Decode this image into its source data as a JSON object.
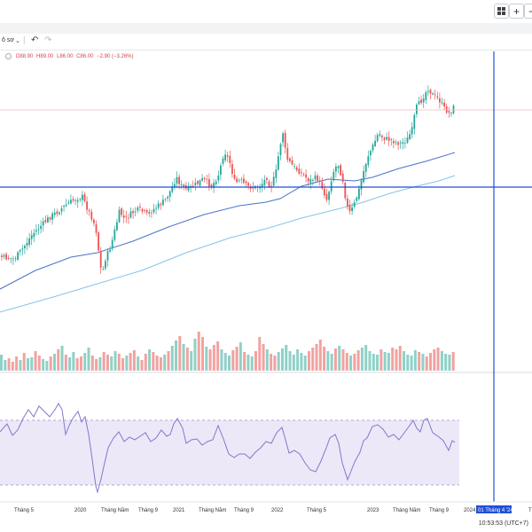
{
  "toolbar": {
    "grid_icon": "grid-icon",
    "plus_label": "+",
    "dash_label": "−",
    "left_label": "ô sơ",
    "undo_icon": "undo-icon",
    "redo_icon": "redo-icon"
  },
  "legend": {
    "open": "O88.90",
    "high": "H89.00",
    "low": "L86.00",
    "close": "C86.00",
    "change": "−2.90 (−3.26%)"
  },
  "crosshair_label": "01 Tháng 4 '24",
  "timezone": "10:53:53 (UTC+7)",
  "colors": {
    "up": "#26a69a",
    "down": "#ef5350",
    "ma1": "#4a73c9",
    "ma2": "#87c3ea",
    "crosshair": "#1f4fd8",
    "rsi": "#8478c8",
    "rsi_band": "#ece8f8"
  },
  "chart_data": [
    {
      "type": "candlestick",
      "x_ticks": [
        "Tháng 5",
        "2020",
        "Tháng Năm",
        "Tháng 9",
        "2021",
        "Tháng Năm",
        "Tháng 9",
        "2022",
        "Tháng 5",
        "2023",
        "Tháng Năm",
        "Tháng 9",
        "2024",
        "Th"
      ],
      "series": [
        {
          "kind": "candles",
          "color_up": "#26a69a",
          "color_down": "#ef5350"
        },
        {
          "kind": "moving-average",
          "color": "#4a73c9"
        },
        {
          "kind": "moving-average",
          "color": "#87c3ea"
        }
      ],
      "price_path": [
        [
          0,
          290
        ],
        [
          15,
          292
        ],
        [
          25,
          280
        ],
        [
          35,
          265
        ],
        [
          45,
          255
        ],
        [
          55,
          245
        ],
        [
          65,
          238
        ],
        [
          75,
          230
        ],
        [
          85,
          224
        ],
        [
          92,
          222
        ],
        [
          98,
          236
        ],
        [
          104,
          248
        ],
        [
          108,
          262
        ],
        [
          112,
          298
        ],
        [
          114,
          310
        ],
        [
          118,
          292
        ],
        [
          124,
          278
        ],
        [
          128,
          262
        ],
        [
          134,
          238
        ],
        [
          140,
          248
        ],
        [
          148,
          240
        ],
        [
          156,
          236
        ],
        [
          165,
          242
        ],
        [
          175,
          234
        ],
        [
          185,
          226
        ],
        [
          192,
          214
        ],
        [
          198,
          200
        ],
        [
          204,
          210
        ],
        [
          210,
          214
        ],
        [
          220,
          208
        ],
        [
          228,
          202
        ],
        [
          238,
          210
        ],
        [
          246,
          196
        ],
        [
          252,
          170
        ],
        [
          258,
          182
        ],
        [
          264,
          206
        ],
        [
          270,
          204
        ],
        [
          278,
          210
        ],
        [
          286,
          212
        ],
        [
          294,
          208
        ],
        [
          300,
          200
        ],
        [
          304,
          212
        ],
        [
          310,
          196
        ],
        [
          314,
          170
        ],
        [
          318,
          148
        ],
        [
          322,
          178
        ],
        [
          330,
          188
        ],
        [
          340,
          196
        ],
        [
          348,
          204
        ],
        [
          356,
          200
        ],
        [
          362,
          210
        ],
        [
          368,
          226
        ],
        [
          374,
          196
        ],
        [
          380,
          184
        ],
        [
          386,
          204
        ],
        [
          390,
          232
        ],
        [
          394,
          240
        ],
        [
          398,
          232
        ],
        [
          404,
          214
        ],
        [
          410,
          190
        ],
        [
          414,
          176
        ],
        [
          420,
          164
        ],
        [
          426,
          150
        ],
        [
          432,
          156
        ],
        [
          440,
          158
        ],
        [
          450,
          162
        ],
        [
          458,
          158
        ],
        [
          464,
          146
        ],
        [
          468,
          122
        ],
        [
          474,
          114
        ],
        [
          478,
          106
        ],
        [
          482,
          100
        ],
        [
          488,
          108
        ],
        [
          494,
          112
        ],
        [
          500,
          122
        ],
        [
          506,
          128
        ],
        [
          510,
          122
        ],
        [
          513,
          118
        ]
      ],
      "volume": [
        18,
        12,
        14,
        10,
        16,
        12,
        20,
        14,
        15,
        22,
        17,
        13,
        11,
        16,
        19,
        24,
        28,
        18,
        15,
        21,
        14,
        16,
        20,
        26,
        17,
        13,
        15,
        21,
        18,
        16,
        22,
        19,
        14,
        17,
        20,
        23,
        16,
        12,
        19,
        24,
        21,
        17,
        15,
        18,
        22,
        28,
        34,
        39,
        30,
        26,
        22,
        36,
        44,
        38,
        27,
        24,
        29,
        33,
        24,
        20,
        17,
        23,
        27,
        32,
        21,
        18,
        16,
        22,
        38,
        30,
        24,
        19,
        17,
        21,
        25,
        29,
        22,
        18,
        24,
        20,
        17,
        22,
        26,
        30,
        35,
        27,
        22,
        19,
        25,
        28,
        24,
        20,
        17,
        19,
        23,
        26,
        29,
        22,
        19,
        18,
        24,
        21,
        20,
        26,
        24,
        28,
        22,
        18,
        17,
        23,
        21,
        19,
        16,
        20,
        24,
        26,
        22,
        19,
        18,
        21
      ],
      "rsi_path": [
        [
          0,
          487
        ],
        [
          8,
          478
        ],
        [
          14,
          491
        ],
        [
          20,
          485
        ],
        [
          26,
          472
        ],
        [
          32,
          462
        ],
        [
          38,
          470
        ],
        [
          44,
          458
        ],
        [
          50,
          464
        ],
        [
          56,
          470
        ],
        [
          62,
          462
        ],
        [
          66,
          455
        ],
        [
          70,
          462
        ],
        [
          74,
          490
        ],
        [
          78,
          480
        ],
        [
          82,
          472
        ],
        [
          88,
          464
        ],
        [
          92,
          476
        ],
        [
          96,
          470
        ],
        [
          100,
          490
        ],
        [
          104,
          518
        ],
        [
          108,
          548
        ],
        [
          110,
          555
        ],
        [
          114,
          540
        ],
        [
          118,
          522
        ],
        [
          122,
          505
        ],
        [
          128,
          494
        ],
        [
          134,
          487
        ],
        [
          140,
          498
        ],
        [
          146,
          493
        ],
        [
          152,
          496
        ],
        [
          158,
          492
        ],
        [
          164,
          488
        ],
        [
          170,
          498
        ],
        [
          176,
          494
        ],
        [
          182,
          485
        ],
        [
          188,
          492
        ],
        [
          192,
          490
        ],
        [
          196,
          478
        ],
        [
          200,
          472
        ],
        [
          206,
          483
        ],
        [
          210,
          500
        ],
        [
          216,
          496
        ],
        [
          222,
          495
        ],
        [
          228,
          502
        ],
        [
          234,
          498
        ],
        [
          240,
          496
        ],
        [
          246,
          480
        ],
        [
          252,
          495
        ],
        [
          258,
          512
        ],
        [
          264,
          516
        ],
        [
          270,
          512
        ],
        [
          276,
          512
        ],
        [
          282,
          517
        ],
        [
          288,
          510
        ],
        [
          294,
          505
        ],
        [
          300,
          498
        ],
        [
          306,
          500
        ],
        [
          312,
          488
        ],
        [
          318,
          482
        ],
        [
          322,
          496
        ],
        [
          326,
          511
        ],
        [
          332,
          508
        ],
        [
          338,
          512
        ],
        [
          344,
          522
        ],
        [
          350,
          530
        ],
        [
          356,
          532
        ],
        [
          362,
          520
        ],
        [
          368,
          505
        ],
        [
          372,
          494
        ],
        [
          378,
          490
        ],
        [
          382,
          500
        ],
        [
          386,
          522
        ],
        [
          392,
          541
        ],
        [
          396,
          531
        ],
        [
          400,
          521
        ],
        [
          406,
          510
        ],
        [
          410,
          497
        ],
        [
          414,
          494
        ],
        [
          420,
          481
        ],
        [
          426,
          479
        ],
        [
          432,
          484
        ],
        [
          438,
          493
        ],
        [
          444,
          490
        ],
        [
          450,
          496
        ],
        [
          456,
          488
        ],
        [
          462,
          480
        ],
        [
          466,
          474
        ],
        [
          470,
          483
        ],
        [
          474,
          487
        ],
        [
          478,
          474
        ],
        [
          482,
          472
        ],
        [
          488,
          488
        ],
        [
          494,
          492
        ],
        [
          500,
          497
        ],
        [
          506,
          508
        ],
        [
          510,
          497
        ],
        [
          513,
          499
        ]
      ]
    }
  ]
}
